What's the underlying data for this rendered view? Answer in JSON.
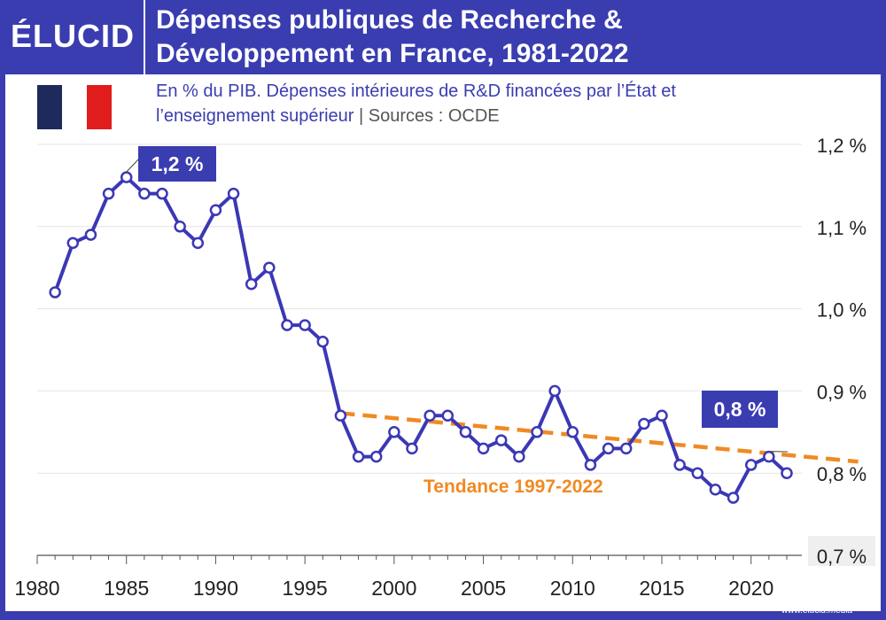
{
  "brand": {
    "logo": "ÉLUCID",
    "footer_url": "www.elucid.media"
  },
  "header": {
    "title_line1": "Dépenses publiques de Recherche &",
    "title_line2": "Développement en France, 1981-2022"
  },
  "subtitle": {
    "line1": "En % du PIB. Dépenses intérieures de R&D financées par l’État et",
    "line2_main": "l’enseignement supérieur",
    "line2_source": "Sources : OCDE"
  },
  "colors": {
    "brand": "#3a3db0",
    "line": "#3b38b5",
    "trend": "#f08a24",
    "flag_blue": "#1f2a5c",
    "flag_red": "#e01c1c"
  },
  "chart_data": {
    "type": "line",
    "title": "Dépenses publiques de Recherche & Développement en France, 1981-2022",
    "ylabel": "En % du PIB",
    "xlim": [
      1980,
      2022
    ],
    "ylim": [
      0.7,
      1.2
    ],
    "x_ticks": [
      "1980",
      "1985",
      "1990",
      "1995",
      "2000",
      "2005",
      "2010",
      "2015",
      "2020"
    ],
    "y_ticks": [
      "0,7 %",
      "0,8 %",
      "0,9 %",
      "1,0 %",
      "1,1 %",
      "1,2 %"
    ],
    "series": [
      {
        "name": "Dépenses publiques de R&D",
        "x": [
          1981,
          1982,
          1983,
          1984,
          1985,
          1986,
          1987,
          1988,
          1989,
          1990,
          1991,
          1992,
          1993,
          1994,
          1995,
          1996,
          1997,
          1998,
          1999,
          2000,
          2001,
          2002,
          2003,
          2004,
          2005,
          2006,
          2007,
          2008,
          2009,
          2010,
          2011,
          2012,
          2013,
          2014,
          2015,
          2016,
          2017,
          2018,
          2019,
          2020,
          2021,
          2022
        ],
        "values": [
          1.02,
          1.08,
          1.09,
          1.14,
          1.16,
          1.14,
          1.14,
          1.1,
          1.08,
          1.12,
          1.14,
          1.03,
          1.05,
          0.98,
          0.98,
          0.96,
          0.87,
          0.82,
          0.82,
          0.85,
          0.83,
          0.87,
          0.87,
          0.85,
          0.83,
          0.84,
          0.82,
          0.85,
          0.9,
          0.85,
          0.81,
          0.83,
          0.83,
          0.86,
          0.87,
          0.81,
          0.8,
          0.78,
          0.77,
          0.81,
          0.82,
          0.8
        ]
      }
    ],
    "trend": {
      "label": "Tendance 1997-2022",
      "x": [
        1997,
        2026
      ],
      "values": [
        0.873,
        0.814
      ]
    },
    "annotations": [
      {
        "text": "1,2 %",
        "x": 1985,
        "y": 1.16
      },
      {
        "text": "0,8 %",
        "x": 2021,
        "y": 0.82
      }
    ]
  }
}
